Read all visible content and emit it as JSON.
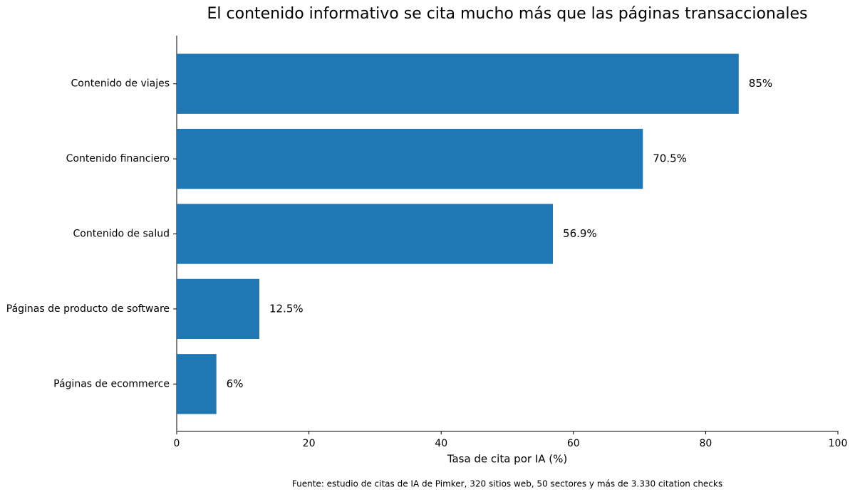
{
  "chart_data": {
    "type": "bar",
    "orientation": "horizontal",
    "title": "El contenido informativo se cita mucho más que las páginas transaccionales",
    "categories": [
      "Contenido de viajes",
      "Contenido financiero",
      "Contenido de salud",
      "Páginas de producto de software",
      "Páginas de ecommerce"
    ],
    "values": [
      85,
      70.5,
      56.9,
      12.5,
      6
    ],
    "value_labels": [
      "85%",
      "70.5%",
      "56.9%",
      "12.5%",
      "6%"
    ],
    "color": "#1f77b4",
    "xlim": [
      0,
      100
    ],
    "xticks": [
      0,
      20,
      40,
      60,
      80,
      100
    ],
    "xlabel": "Tasa de cita por IA (%)",
    "source": "Fuente: estudio de citas de IA de Pimker, 320 sitios web, 50 sectores y más de 3.330 citation checks",
    "grid": false
  }
}
